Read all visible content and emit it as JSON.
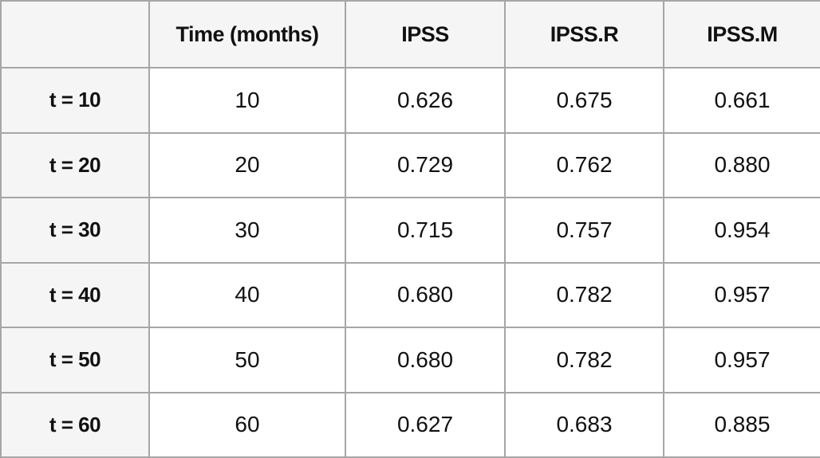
{
  "colors": {
    "border": "#a6a6a6",
    "header_bg": "#f5f5f5",
    "cell_bg": "#ffffff",
    "text": "#111111"
  },
  "table": {
    "columns": [
      "",
      "Time (months)",
      "IPSS",
      "IPSS.R",
      "IPSS.M"
    ],
    "rows": [
      {
        "label": "t = 10",
        "values": [
          "10",
          "0.626",
          "0.675",
          "0.661"
        ]
      },
      {
        "label": "t = 20",
        "values": [
          "20",
          "0.729",
          "0.762",
          "0.880"
        ]
      },
      {
        "label": "t = 30",
        "values": [
          "30",
          "0.715",
          "0.757",
          "0.954"
        ]
      },
      {
        "label": "t = 40",
        "values": [
          "40",
          "0.680",
          "0.782",
          "0.957"
        ]
      },
      {
        "label": "t = 50",
        "values": [
          "50",
          "0.680",
          "0.782",
          "0.957"
        ]
      },
      {
        "label": "t = 60",
        "values": [
          "60",
          "0.627",
          "0.683",
          "0.885"
        ]
      }
    ]
  },
  "chart_data": {
    "type": "table",
    "title": "",
    "columns": [
      "",
      "Time (months)",
      "IPSS",
      "IPSS.R",
      "IPSS.M"
    ],
    "rows": [
      [
        "t = 10",
        10,
        0.626,
        0.675,
        0.661
      ],
      [
        "t = 20",
        20,
        0.729,
        0.762,
        0.88
      ],
      [
        "t = 30",
        30,
        0.715,
        0.757,
        0.954
      ],
      [
        "t = 40",
        40,
        0.68,
        0.782,
        0.957
      ],
      [
        "t = 50",
        50,
        0.68,
        0.782,
        0.957
      ],
      [
        "t = 60",
        60,
        0.627,
        0.683,
        0.885
      ]
    ]
  }
}
